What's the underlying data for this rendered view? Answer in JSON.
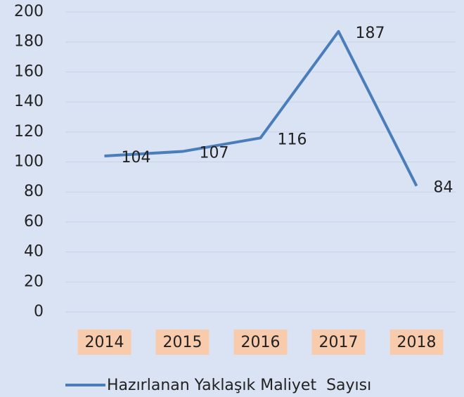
{
  "chart_data": {
    "type": "line",
    "categories": [
      "2014",
      "2015",
      "2016",
      "2017",
      "2018"
    ],
    "series": [
      {
        "name": "Hazırlanan Yaklaşık Maliyet  Sayısı",
        "color": "#4a7ebb",
        "values": [
          104,
          107,
          116,
          187,
          84
        ]
      }
    ],
    "ylim": [
      0,
      200
    ],
    "yticks": [
      0,
      20,
      40,
      60,
      80,
      100,
      120,
      140,
      160,
      180,
      200
    ],
    "grid": true,
    "data_labels": true,
    "legend": "bottom",
    "category_label_background": "#f8cbad"
  }
}
